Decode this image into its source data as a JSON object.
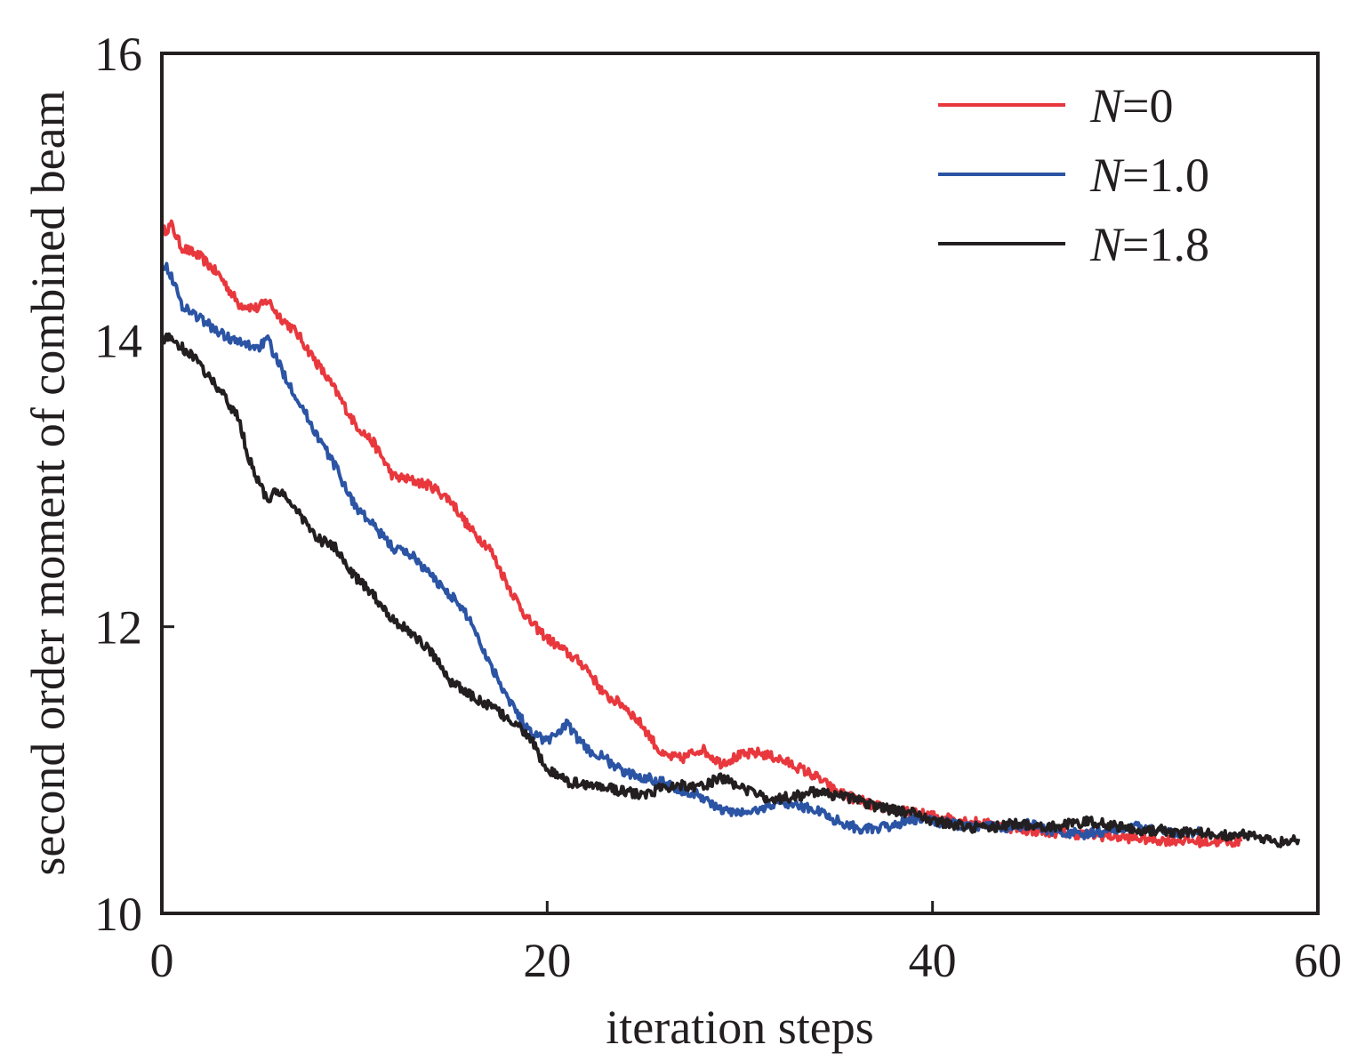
{
  "chart_data": {
    "type": "line",
    "xlabel": "iteration steps",
    "ylabel": "second order moment of combined beam",
    "xlim": [
      0,
      60
    ],
    "ylim": [
      10,
      16
    ],
    "x_ticks": [
      "0",
      "20",
      "40",
      "60"
    ],
    "y_ticks": [
      "10",
      "12",
      "14",
      "16"
    ],
    "grid": false,
    "legend_position": "top-right",
    "series": [
      {
        "name": "N=0",
        "legend_var": "N",
        "legend_rest": "=0",
        "color": "#e8383d",
        "x": [
          0,
          0.5,
          1,
          2,
          3,
          4,
          5,
          5.5,
          6,
          7,
          8,
          9,
          10,
          11,
          12,
          13,
          14,
          15,
          16,
          17,
          18,
          19,
          20,
          21,
          22,
          23,
          24,
          25,
          26,
          27,
          28,
          29,
          30,
          31,
          32,
          33,
          34,
          35,
          36,
          37,
          38,
          39,
          40,
          41,
          42,
          43,
          44,
          45,
          46,
          47,
          48,
          49,
          50,
          51,
          52,
          53,
          54,
          55,
          56
        ],
        "y": [
          14.75,
          14.8,
          14.65,
          14.58,
          14.45,
          14.25,
          14.22,
          14.28,
          14.18,
          14.05,
          13.85,
          13.65,
          13.42,
          13.28,
          13.05,
          13.02,
          12.98,
          12.88,
          12.68,
          12.55,
          12.28,
          12.05,
          11.92,
          11.82,
          11.72,
          11.52,
          11.45,
          11.3,
          11.1,
          11.08,
          11.15,
          11.05,
          11.1,
          11.12,
          11.08,
          11.02,
          10.95,
          10.85,
          10.8,
          10.75,
          10.72,
          10.7,
          10.68,
          10.66,
          10.64,
          10.62,
          10.6,
          10.58,
          10.57,
          10.56,
          10.55,
          10.54,
          10.53,
          10.52,
          10.51,
          10.51,
          10.5,
          10.5,
          10.5
        ]
      },
      {
        "name": "N=1.0",
        "legend_var": "N",
        "legend_rest": "=1.0",
        "color": "#2b54a4",
        "x": [
          0,
          0.5,
          1,
          2,
          3,
          4,
          5,
          5.5,
          6,
          7,
          8,
          9,
          10,
          11,
          12,
          13,
          14,
          15,
          16,
          17,
          18,
          19,
          20,
          21,
          22,
          23,
          24,
          25,
          26,
          27,
          28,
          29,
          30,
          31,
          32,
          33,
          34,
          35,
          36,
          37,
          38,
          39,
          40,
          41,
          42,
          43,
          44,
          45,
          46,
          47,
          48,
          49,
          50,
          51,
          52,
          53,
          54
        ],
        "y": [
          14.55,
          14.45,
          14.25,
          14.15,
          14.05,
          13.98,
          13.95,
          14.0,
          13.85,
          13.6,
          13.35,
          13.12,
          12.85,
          12.7,
          12.55,
          12.5,
          12.35,
          12.22,
          12.05,
          11.75,
          11.5,
          11.28,
          11.2,
          11.32,
          11.15,
          11.08,
          10.98,
          10.95,
          10.92,
          10.85,
          10.82,
          10.72,
          10.7,
          10.72,
          10.78,
          10.75,
          10.72,
          10.65,
          10.6,
          10.58,
          10.62,
          10.65,
          10.65,
          10.62,
          10.6,
          10.62,
          10.6,
          10.62,
          10.58,
          10.56,
          10.55,
          10.58,
          10.6,
          10.6,
          10.58,
          10.56,
          10.58
        ]
      },
      {
        "name": "N=1.8",
        "legend_var": "N",
        "legend_rest": "=1.8",
        "color": "#231f20",
        "x": [
          0,
          0.5,
          1,
          1.5,
          2,
          3,
          4,
          4.5,
          5,
          5.5,
          6,
          7,
          8,
          9,
          10,
          11,
          12,
          13,
          14,
          15,
          16,
          17,
          18,
          19,
          20,
          21,
          22,
          23,
          24,
          25,
          26,
          27,
          28,
          29,
          30,
          31,
          32,
          33,
          34,
          35,
          36,
          37,
          38,
          39,
          40,
          41,
          42,
          43,
          44,
          45,
          46,
          47,
          48,
          49,
          50,
          51,
          52,
          53,
          54,
          55,
          56,
          57,
          58,
          59
        ],
        "y": [
          14.0,
          14.02,
          13.95,
          13.9,
          13.82,
          13.65,
          13.45,
          13.18,
          13.02,
          12.88,
          12.95,
          12.82,
          12.62,
          12.55,
          12.35,
          12.22,
          12.05,
          11.95,
          11.82,
          11.62,
          11.52,
          11.45,
          11.35,
          11.25,
          11.0,
          10.92,
          10.9,
          10.88,
          10.85,
          10.82,
          10.88,
          10.9,
          10.88,
          10.95,
          10.88,
          10.82,
          10.8,
          10.82,
          10.85,
          10.82,
          10.8,
          10.75,
          10.72,
          10.7,
          10.65,
          10.62,
          10.6,
          10.6,
          10.62,
          10.62,
          10.6,
          10.62,
          10.64,
          10.62,
          10.6,
          10.58,
          10.58,
          10.56,
          10.56,
          10.54,
          10.55,
          10.52,
          10.5,
          10.52
        ]
      }
    ]
  }
}
